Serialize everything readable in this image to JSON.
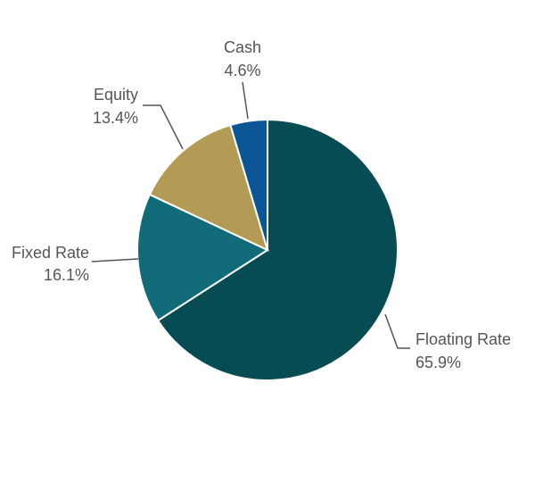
{
  "chart_data": {
    "type": "pie",
    "categories": [
      "Floating Rate",
      "Fixed Rate",
      "Equity",
      "Cash"
    ],
    "values": [
      65.9,
      16.1,
      13.4,
      4.6
    ],
    "value_labels": [
      "65.9%",
      "16.1%",
      "13.4%",
      "4.6%"
    ],
    "colors": [
      "#074b53",
      "#116b78",
      "#b39b56",
      "#0a5596"
    ]
  }
}
